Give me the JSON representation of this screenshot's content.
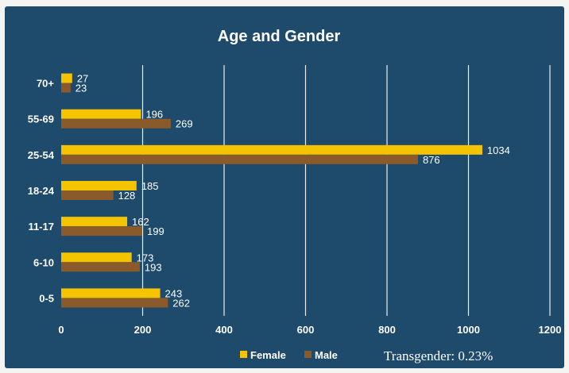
{
  "chart_data": {
    "type": "bar",
    "orientation": "horizontal",
    "title": "Age and Gender",
    "categories": [
      "70+",
      "55-69",
      "25-54",
      "18-24",
      "11-17",
      "6-10",
      "0-5"
    ],
    "series": [
      {
        "name": "Female",
        "values": [
          27,
          196,
          1034,
          185,
          162,
          173,
          243
        ],
        "color": "#f5c400"
      },
      {
        "name": "Male",
        "values": [
          23,
          269,
          876,
          128,
          199,
          193,
          262
        ],
        "color": "#8b5a2b"
      }
    ],
    "x_ticks": [
      0,
      200,
      400,
      600,
      800,
      1000,
      1200
    ],
    "xlim": [
      0,
      1200
    ],
    "grid": "vertical",
    "legend_position": "bottom",
    "note": "Transgender: 0.23%"
  }
}
